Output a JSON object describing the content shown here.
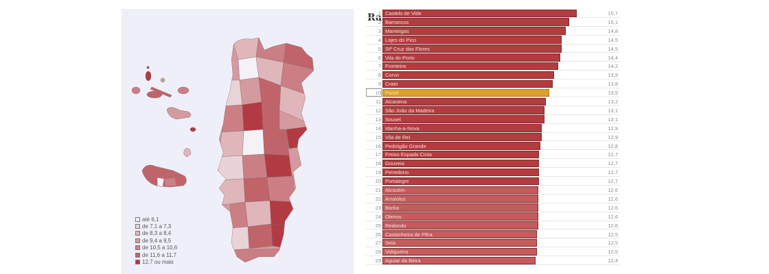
{
  "chart_data": [
    {
      "type": "choropleth-map",
      "title": "",
      "region": "Portugal (continental, Açores, Madeira) by municipality",
      "legend": [
        {
          "label": "até 6,1",
          "color": "#f4f2f6"
        },
        {
          "label": "de 7,1 a 7,3",
          "color": "#e9d3d6"
        },
        {
          "label": "de 8,3 a 8,4",
          "color": "#dfb7bb"
        },
        {
          "label": "de 9,4 a 9,5",
          "color": "#d49a9f"
        },
        {
          "label": "de 10,5 a 10,6",
          "color": "#cb7f84"
        },
        {
          "label": "de 11,6 a 11,7",
          "color": "#c0646a"
        },
        {
          "label": "12,7 ou mais",
          "color": "#b23a43"
        }
      ],
      "legend_position": "bottom-left"
    },
    {
      "type": "bar",
      "orientation": "horizontal",
      "title": "",
      "highlighted_category": "Portel",
      "categories": [
        "Castelo de Vide",
        "Barrancos",
        "Manteigas",
        "Lajes do Pico",
        "Stª Cruz das Flores",
        "Vila do Porto",
        "Fronteira",
        "Corvo",
        "Crato",
        "Portel",
        "Alcanena",
        "São João da Madeira",
        "Sousel",
        "Idanha-a-Nova",
        "Vila de Rei",
        "Pedrógão Grande",
        "Freixo Espada Cinta",
        "Gouveia",
        "Penedono",
        "Portalegre",
        "Alcoutim",
        "Arraiolos",
        "Borba",
        "Oleiros",
        "Redondo",
        "Castanheira de Pêra",
        "Seia",
        "Vidigueira",
        "Aguiar da Beira"
      ],
      "ranks": [
        1,
        2,
        3,
        4,
        5,
        6,
        7,
        8,
        9,
        10,
        11,
        12,
        13,
        14,
        15,
        16,
        17,
        18,
        19,
        20,
        21,
        22,
        23,
        24,
        25,
        26,
        27,
        28,
        29
      ],
      "values": [
        15.7,
        15.1,
        14.8,
        14.5,
        14.5,
        14.4,
        14.2,
        13.9,
        13.8,
        13.5,
        13.2,
        13.1,
        13.1,
        12.9,
        12.9,
        12.8,
        12.7,
        12.7,
        12.7,
        12.7,
        12.6,
        12.6,
        12.6,
        12.6,
        12.6,
        12.5,
        12.5,
        12.5,
        12.4
      ],
      "value_labels": [
        "15,7",
        "15,1",
        "14,8",
        "14,5",
        "14,5",
        "14,4",
        "14,2",
        "13,9",
        "13,8",
        "13,5",
        "13,2",
        "13,1",
        "13,1",
        "12,9",
        "12,9",
        "12,8",
        "12,7",
        "12,7",
        "12,7",
        "12,7",
        "12,6",
        "12,6",
        "12,6",
        "12,6",
        "12,6",
        "12,5",
        "12,5",
        "12,5",
        "12,4"
      ]
    }
  ],
  "colors": {
    "bar_dark": "#b43b3f",
    "bar_light": "#c45b5d",
    "bar_highlight": "#dba02b",
    "map_background": "#efeff9"
  },
  "title_fragment": "Ra"
}
